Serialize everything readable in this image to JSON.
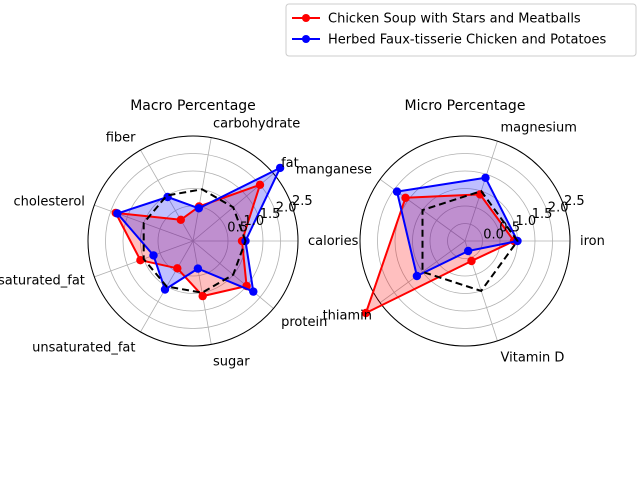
{
  "legend": {
    "placement": "top-right",
    "entries": [
      {
        "label": "Chicken Soup with Stars and Meatballs",
        "color": "#ff0000",
        "marker": "circle"
      },
      {
        "label": "Herbed Faux-tisserie Chicken and Potatoes",
        "color": "#0000ff",
        "marker": "circle"
      }
    ]
  },
  "chart_data": [
    {
      "type": "radar",
      "title": "Macro Percentage",
      "categories": [
        "calories",
        "fat",
        "carbohydrate",
        "fiber",
        "cholesterol",
        "saturated_fat",
        "unsaturated_fat",
        "sugar",
        "protein"
      ],
      "rlim": [
        -0.5,
        2.5
      ],
      "rticks": [
        "0.5",
        "1.0",
        "1.5",
        "2.0",
        "2.5"
      ],
      "rtick_values": [
        0.5,
        1.0,
        1.5,
        2.0,
        2.5
      ],
      "grid": true,
      "reference": {
        "name": "",
        "style": "dashed",
        "color": "#000000",
        "values": [
          1,
          1,
          1,
          1,
          1,
          1,
          1,
          1,
          1
        ]
      },
      "series": [
        {
          "name": "Chicken Soup with Stars and Meatballs",
          "color": "#ff0000",
          "fill": "#ff0000",
          "values": [
            0.9,
            2.0,
            0.5,
            0.2,
            1.85,
            1.1,
            0.4,
            1.1,
            1.5
          ]
        },
        {
          "name": "Herbed Faux-tisserie Chicken and Potatoes",
          "color": "#0000ff",
          "fill": "#0000ff",
          "values": [
            1.0,
            2.75,
            0.45,
            0.95,
            1.8,
            0.7,
            1.1,
            0.3,
            1.75
          ]
        }
      ]
    },
    {
      "type": "radar",
      "title": "Micro Percentage",
      "categories": [
        "iron",
        "magnesium",
        "manganese",
        "thiamin",
        "Vitamin D"
      ],
      "rlim": [
        -0.5,
        2.5
      ],
      "rticks": [
        "0.0",
        "0.5",
        "1.0",
        "1.5",
        "2.0",
        "2.5"
      ],
      "rtick_values": [
        0.0,
        0.5,
        1.0,
        1.5,
        2.0,
        2.5
      ],
      "grid": true,
      "reference": {
        "name": "",
        "style": "dashed",
        "color": "#000000",
        "values": [
          1,
          1,
          1,
          1,
          1
        ]
      },
      "series": [
        {
          "name": "Chicken Soup with Stars and Meatballs",
          "color": "#ff0000",
          "fill": "#ff0000",
          "values": [
            0.9,
            0.9,
            1.6,
            3.0,
            0.1
          ]
        },
        {
          "name": "Herbed Faux-tisserie Chicken and Potatoes",
          "color": "#0000ff",
          "fill": "#0000ff",
          "values": [
            1.0,
            1.4,
            1.9,
            1.2,
            -0.2
          ]
        }
      ]
    }
  ]
}
